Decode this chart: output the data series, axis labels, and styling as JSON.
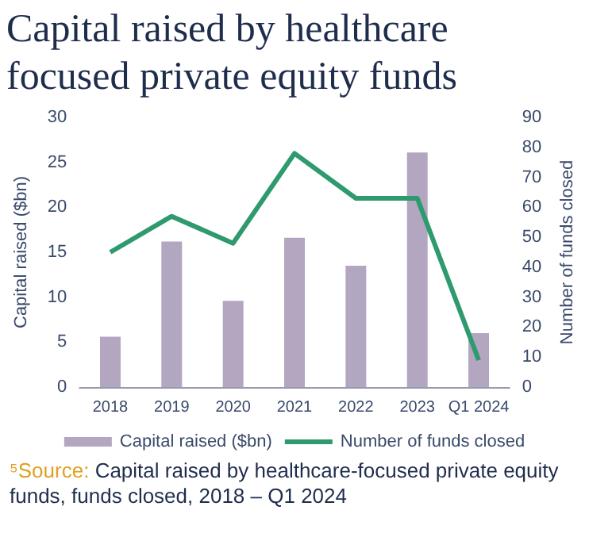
{
  "chart_data": {
    "type": "bar",
    "title": "Capital raised by healthcare focused private equity funds",
    "categories": [
      "2018",
      "2019",
      "2020",
      "2021",
      "2022",
      "2023",
      "Q1 2024"
    ],
    "series": [
      {
        "name": "Capital raised ($bn)",
        "color": "#b3a6c0",
        "values": [
          5.6,
          16.2,
          9.6,
          16.6,
          13.5,
          26.1,
          6.0
        ]
      },
      {
        "name": "Number of funds closed",
        "type": "line",
        "axis": "y2",
        "color": "#2e9a6e",
        "values": [
          45,
          57,
          48,
          78,
          63,
          63,
          9
        ]
      }
    ],
    "ylabel": "Capital raised ($bn)",
    "y2label": "Number of funds closed",
    "ylim": [
      0,
      30
    ],
    "yticks": [
      0,
      5,
      10,
      15,
      20,
      25,
      30
    ],
    "y2lim": [
      0,
      90
    ],
    "y2ticks": [
      0,
      10,
      20,
      30,
      40,
      50,
      60,
      70,
      80,
      90
    ],
    "legend": "bottom",
    "grid": false,
    "marker": "none",
    "annotations": [
      "⁵Source: Capital raised by healthcare-focused private equity funds, funds closed, 2018 – Q1 2024"
    ]
  }
}
